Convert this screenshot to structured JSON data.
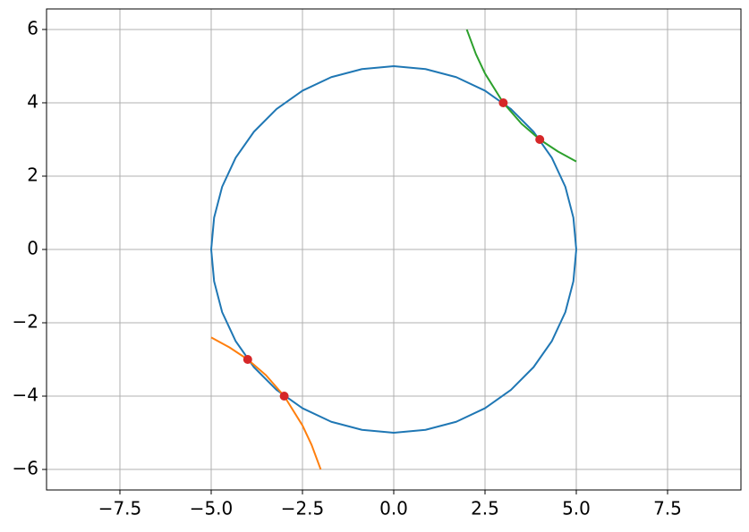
{
  "chart_data": {
    "type": "line",
    "xlim": [
      -9.51,
      9.51
    ],
    "ylim": [
      -6.56,
      6.56
    ],
    "xticks": [
      {
        "value": -7.5,
        "label": "−7.5"
      },
      {
        "value": -5,
        "label": "−5.0"
      },
      {
        "value": -2.5,
        "label": "−2.5"
      },
      {
        "value": 0,
        "label": "0.0"
      },
      {
        "value": 2.5,
        "label": "2.5"
      },
      {
        "value": 5,
        "label": "5.0"
      },
      {
        "value": 7.5,
        "label": "7.5"
      }
    ],
    "yticks": [
      {
        "value": -6,
        "label": "−6"
      },
      {
        "value": -4,
        "label": "−4"
      },
      {
        "value": -2,
        "label": "−2"
      },
      0,
      2,
      4,
      6
    ],
    "grid": true,
    "series": [
      {
        "color": "#1f77b4",
        "mode": "line",
        "x": [
          5,
          4.92,
          4.7,
          4.33,
          3.83,
          3.21,
          2.5,
          1.71,
          0.87,
          0,
          -0.87,
          -1.71,
          -2.5,
          -3.21,
          -3.83,
          -4.33,
          -4.7,
          -4.92,
          -5,
          -4.92,
          -4.7,
          -4.33,
          -3.83,
          -3.21,
          -2.5,
          -1.71,
          -0.87,
          0,
          0.87,
          1.71,
          2.5,
          3.21,
          3.83,
          4.33,
          4.7,
          4.92,
          5
        ],
        "values": [
          0,
          0.87,
          1.71,
          2.5,
          3.21,
          3.83,
          4.33,
          4.7,
          4.92,
          5,
          4.92,
          4.7,
          4.33,
          3.83,
          3.21,
          2.5,
          1.71,
          0.87,
          0,
          -0.87,
          -1.71,
          -2.5,
          -3.21,
          -3.83,
          -4.33,
          -4.7,
          -4.92,
          -5,
          -4.92,
          -4.7,
          -4.33,
          -3.83,
          -3.21,
          -2.5,
          -1.71,
          -0.87,
          0
        ]
      },
      {
        "color": "#ff7f0e",
        "mode": "line",
        "x": [
          -5,
          -4.5,
          -4,
          -3.5,
          -3,
          -2.5,
          -2.25,
          -2
        ],
        "values": [
          -2.4,
          -2.67,
          -3,
          -3.43,
          -4,
          -4.8,
          -5.33,
          -6
        ]
      },
      {
        "color": "#2ca02c",
        "mode": "line",
        "x": [
          2,
          2.25,
          2.5,
          3,
          3.5,
          4,
          4.5,
          5
        ],
        "values": [
          6,
          5.33,
          4.8,
          4,
          3.43,
          3,
          2.67,
          2.4
        ]
      },
      {
        "color": "#d62728",
        "mode": "markers",
        "x": [
          3,
          4,
          -3,
          -4
        ],
        "values": [
          4,
          3,
          -4,
          -3
        ]
      }
    ]
  }
}
